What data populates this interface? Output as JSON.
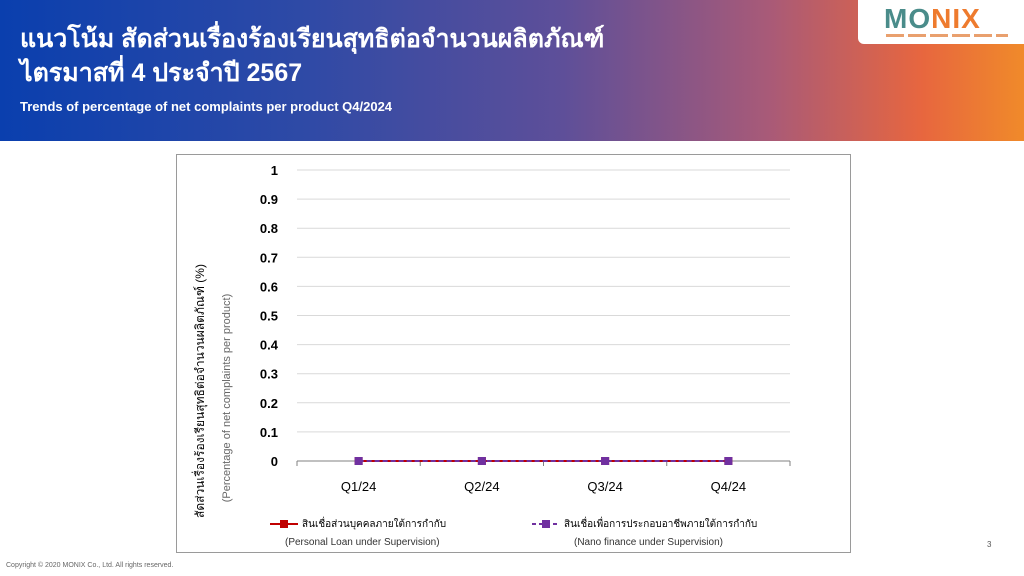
{
  "header": {
    "title_th_line1": "แนวโน้ม สัดส่วนเรื่องร้องเรียนสุทธิต่อจำนวนผลิตภัณฑ์",
    "title_th_line2": "ไตรมาสที่ 4 ประจำปี 2567",
    "title_en": "Trends of percentage of net complaints per product Q4/2024"
  },
  "logo": {
    "word_part1": "MO",
    "word_part2": "NIX"
  },
  "colors": {
    "series1": "#c00000",
    "series2": "#7030a0",
    "grid": "#d9d9d9"
  },
  "chart_data": {
    "type": "line",
    "x": [
      "Q1/24",
      "Q2/24",
      "Q3/24",
      "Q4/24"
    ],
    "ylim": [
      0,
      1
    ],
    "yticks": [
      "0",
      "0.1",
      "0.2",
      "0.3",
      "0.4",
      "0.5",
      "0.6",
      "0.7",
      "0.8",
      "0.9",
      "1"
    ],
    "ylabel": "สัดส่วนเรื่องร้องเรียนสุทธิต่อจำนวนผลิตภัณฑ์ (%)",
    "ylabel_en": "(Percentage of net complaints per product)",
    "grid": true,
    "legend": "bottom",
    "series": [
      {
        "name": "สินเชื่อส่วนบุคคลภายใต้การกำกับ",
        "name_en": "(Personal Loan under Supervision)",
        "values": [
          0,
          0,
          0,
          0
        ]
      },
      {
        "name": "สินเชื่อเพื่อการประกอบอาชีพภายใต้การกำกับ",
        "name_en": "(Nano finance under Supervision)",
        "values": [
          0,
          0,
          0,
          0
        ]
      }
    ]
  },
  "footer": {
    "page_number": "3",
    "copyright": "Copyright © 2020 MONIX Co., Ltd. All rights reserved."
  }
}
